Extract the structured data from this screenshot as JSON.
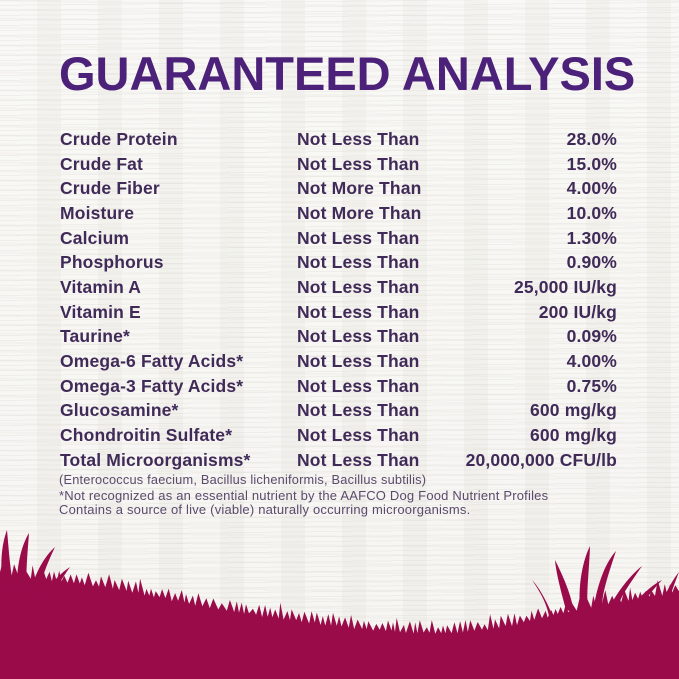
{
  "page": {
    "title": "GUARANTEED ANALYSIS"
  },
  "table": {
    "rows": [
      {
        "nutrient": "Crude Protein",
        "qualifier": "Not Less Than",
        "value": "28.0%"
      },
      {
        "nutrient": "Crude Fat",
        "qualifier": "Not Less Than",
        "value": "15.0%"
      },
      {
        "nutrient": "Crude Fiber",
        "qualifier": "Not More Than",
        "value": "4.00%"
      },
      {
        "nutrient": "Moisture",
        "qualifier": "Not More Than",
        "value": "10.0%"
      },
      {
        "nutrient": "Calcium",
        "qualifier": "Not Less Than",
        "value": "1.30%"
      },
      {
        "nutrient": "Phosphorus",
        "qualifier": "Not Less Than",
        "value": "0.90%"
      },
      {
        "nutrient": "Vitamin A",
        "qualifier": "Not Less Than",
        "value": "25,000 IU/kg"
      },
      {
        "nutrient": "Vitamin E",
        "qualifier": "Not Less Than",
        "value": "200 IU/kg"
      },
      {
        "nutrient": "Taurine*",
        "qualifier": "Not Less Than",
        "value": "0.09%"
      },
      {
        "nutrient": "Omega-6 Fatty Acids*",
        "qualifier": "Not Less Than",
        "value": "4.00%"
      },
      {
        "nutrient": "Omega-3 Fatty Acids*",
        "qualifier": "Not Less Than",
        "value": "0.75%"
      },
      {
        "nutrient": "Glucosamine*",
        "qualifier": "Not Less Than",
        "value": "600 mg/kg"
      },
      {
        "nutrient": "Chondroitin Sulfate*",
        "qualifier": "Not Less Than",
        "value": "600 mg/kg"
      },
      {
        "nutrient": "Total Microorganisms*",
        "qualifier": "Not Less Than",
        "value": "20,000,000 CFU/lb"
      }
    ],
    "microorganisms_detail": "(Enterococcus faecium, Bacillus licheniformis, Bacillus subtilis)"
  },
  "footnotes": {
    "line1": "*Not recognized as an essential nutrient by the AAFCO Dog Food Nutrient Profiles",
    "line2": "Contains a source of live (viable) naturally occurring microorganisms."
  },
  "colors": {
    "title": "#4b2179",
    "body_text": "#402a58",
    "footnote": "#5b4a6c",
    "grass": "#9a0b4a",
    "background": "#f4f3f0"
  }
}
